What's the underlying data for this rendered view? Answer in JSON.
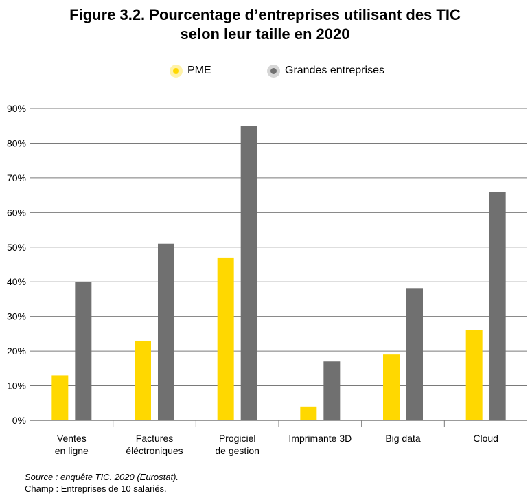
{
  "figure": {
    "title_line1": "Figure 3.2. Pourcentage d’entreprises utilisant des TIC",
    "title_line2": "selon leur taille en 2020"
  },
  "notes": {
    "source": "Source : enquête TIC. 2020 (Eurostat).",
    "champ": "Champ : Entreprises de 10 salariés."
  },
  "colors": {
    "pme": "#ffd800",
    "grandes": "#707070",
    "grid": "#7a7a7a"
  },
  "chart_data": {
    "type": "bar",
    "categories": [
      [
        "Ventes",
        "en ligne"
      ],
      [
        "Factures",
        "éléctroniques"
      ],
      [
        "Progiciel",
        "de gestion"
      ],
      [
        "Imprimante 3D"
      ],
      [
        "Big data"
      ],
      [
        "Cloud"
      ]
    ],
    "series": [
      {
        "name": "PME",
        "values": [
          13,
          23,
          47,
          4,
          19,
          26
        ]
      },
      {
        "name": "Grandes entreprises",
        "values": [
          40,
          51,
          85,
          17,
          38,
          66
        ]
      }
    ],
    "y_ticks": [
      "0%",
      "10%",
      "20%",
      "30%",
      "40%",
      "50%",
      "60%",
      "70%",
      "80%",
      "90%"
    ],
    "ylim": [
      0,
      90
    ],
    "grid": true,
    "legend_position": "top-center"
  }
}
